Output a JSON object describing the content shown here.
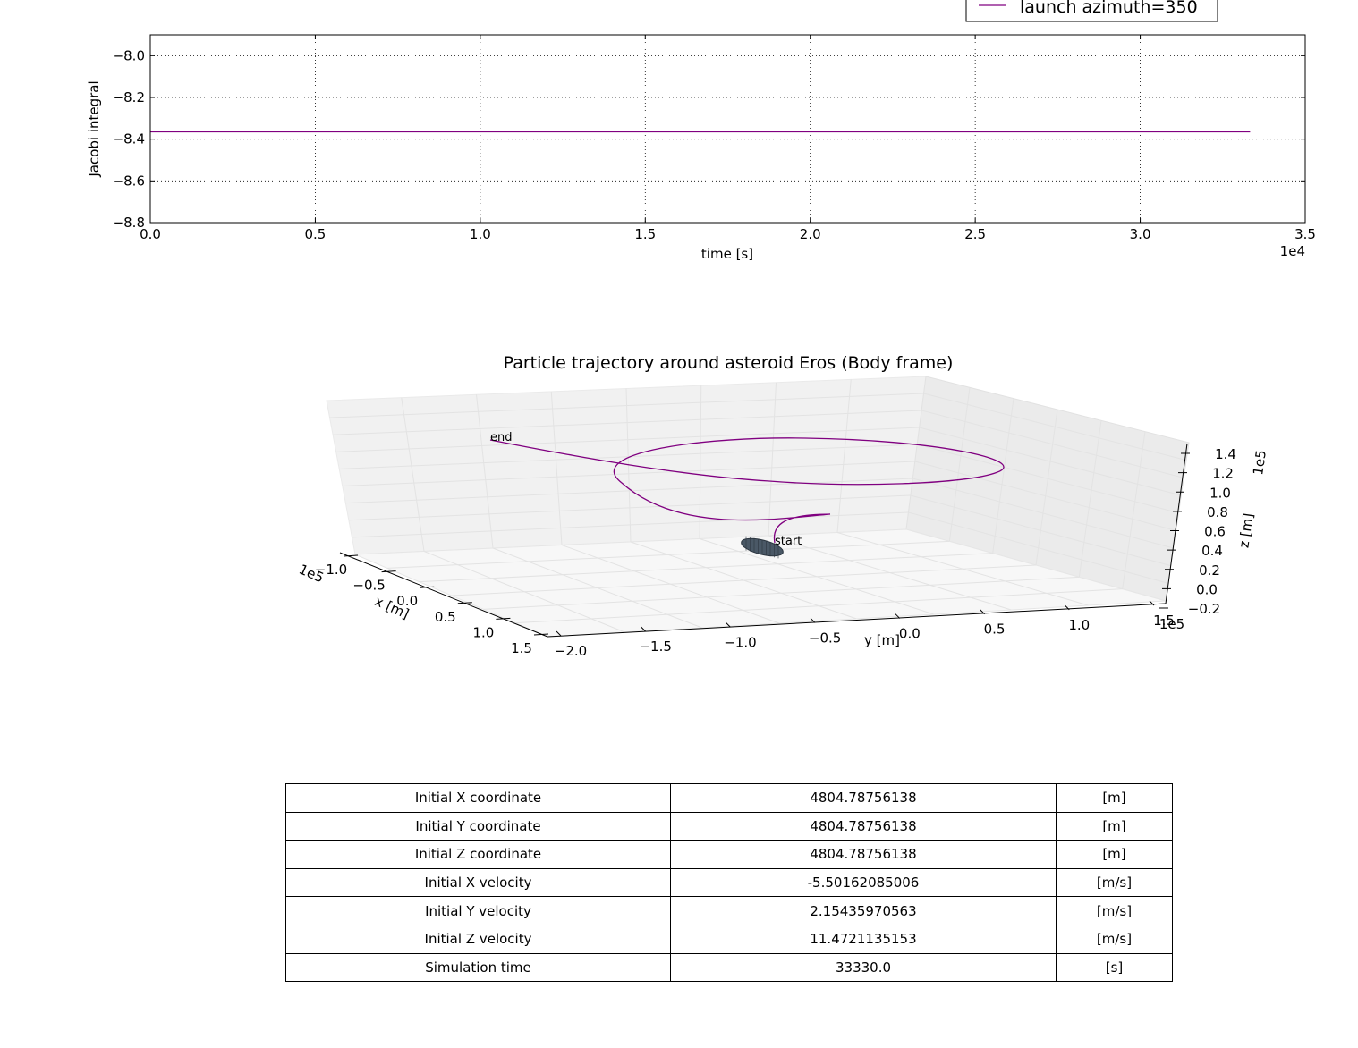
{
  "colors": {
    "line": "#800080",
    "body": "#4a5866",
    "grid": "#e6e6e6",
    "pane": "#f4f4f4"
  },
  "chart_data": [
    {
      "type": "line",
      "title": "",
      "xlabel": "time [s]",
      "ylabel": "Jacobi integral",
      "x_offset_label": "1e4",
      "xlim": [
        0,
        35000
      ],
      "ylim": [
        -8.8,
        -7.9
      ],
      "xticks": [
        0,
        5000,
        10000,
        15000,
        20000,
        25000,
        30000,
        35000
      ],
      "xtick_labels": [
        "0.0",
        "0.5",
        "1.0",
        "1.5",
        "2.0",
        "2.5",
        "3.0",
        "3.5"
      ],
      "yticks": [
        -8.0,
        -8.2,
        -8.4,
        -8.6,
        -8.8
      ],
      "ytick_labels": [
        "−8.0",
        "−8.2",
        "−8.4",
        "−8.6",
        "−8.8"
      ],
      "grid": true,
      "legend": {
        "placement": "top-right",
        "entries": [
          "launch azimuth=350"
        ]
      },
      "series": [
        {
          "name": "launch azimuth=350",
          "x": [
            0,
            33330
          ],
          "y": [
            -8.365,
            -8.365
          ]
        }
      ]
    },
    {
      "type": "line",
      "title": "Particle trajectory around asteroid Eros (Body frame)",
      "xlabel": "x [m]",
      "ylabel": "y [m]",
      "zlabel": "z [m]",
      "x_offset_label": "1e5",
      "y_offset_label": "1e5",
      "z_offset_label": "1e5",
      "xlim": [
        -1.0,
        1.5
      ],
      "ylim": [
        -2.0,
        1.5
      ],
      "zlim": [
        -0.2,
        1.4
      ],
      "xtick_labels": [
        "−1.0",
        "−0.5",
        "0.0",
        "0.5",
        "1.0",
        "1.5"
      ],
      "ytick_labels": [
        "−2.0",
        "−1.5",
        "−1.0",
        "−0.5",
        "0.0",
        "0.5",
        "1.0",
        "1.5"
      ],
      "ztick_labels": [
        "−0.2",
        "0.0",
        "0.2",
        "0.4",
        "0.6",
        "0.8",
        "1.0",
        "1.2",
        "1.4"
      ],
      "grid": true,
      "annotations": [
        {
          "text": "start"
        },
        {
          "text": "end"
        }
      ]
    }
  ],
  "table": {
    "rows": [
      [
        "Initial X coordinate",
        "4804.78756138",
        "[m]"
      ],
      [
        "Initial Y coordinate",
        "4804.78756138",
        "[m]"
      ],
      [
        "Initial Z coordinate",
        "4804.78756138",
        "[m]"
      ],
      [
        "Initial X velocity",
        "-5.50162085006",
        "[m/s]"
      ],
      [
        "Initial Y velocity",
        "2.15435970563",
        "[m/s]"
      ],
      [
        "Initial Z velocity",
        "11.4721135153",
        "[m/s]"
      ],
      [
        "Simulation time",
        "33330.0",
        "[s]"
      ]
    ]
  }
}
